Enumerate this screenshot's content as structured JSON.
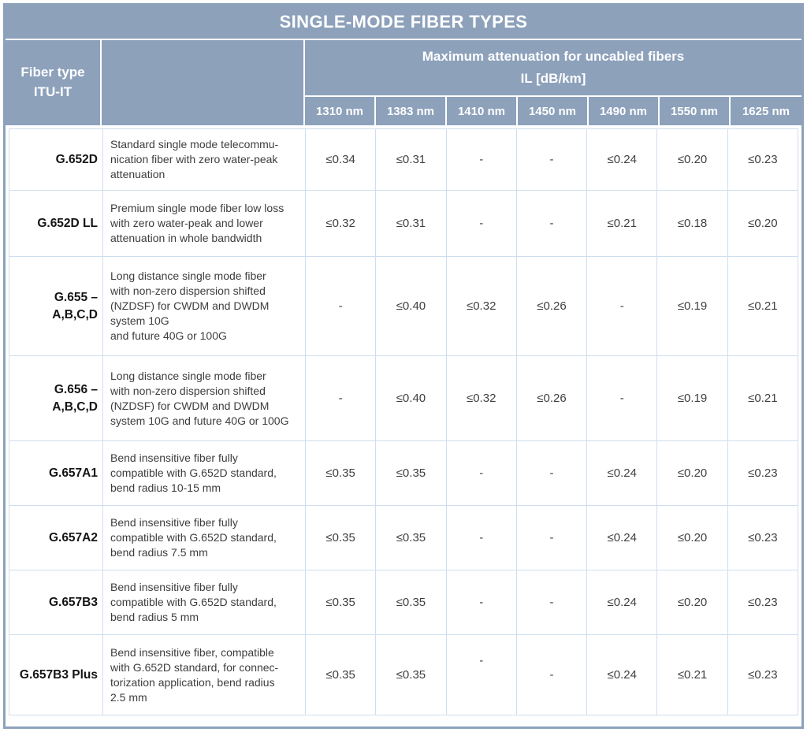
{
  "title": "SINGLE-MODE FIBER TYPES",
  "header": {
    "fiber_type_label": "Fiber type\nITU-IT",
    "attenuation_label": "Maximum attenuation for uncabled fibers\nIL [dB/km]",
    "wavelengths": [
      "1310 nm",
      "1383 nm",
      "1410 nm",
      "1450 nm",
      "1490 nm",
      "1550 nm",
      "1625 nm"
    ]
  },
  "rows": [
    {
      "type": "G.652D",
      "description": "Standard single mode telecommu-\nnication fiber with zero water-peak\nattenuation",
      "values": [
        "≤0.34",
        "≤0.31",
        "-",
        "-",
        "≤0.24",
        "≤0.20",
        "≤0.23"
      ]
    },
    {
      "type": "G.652D LL",
      "description": "Premium single mode fiber low loss\nwith zero water-peak and lower\nattenuation in whole bandwidth",
      "values": [
        "≤0.32",
        "≤0.31",
        "-",
        "-",
        "≤0.21",
        "≤0.18",
        "≤0.20"
      ]
    },
    {
      "type": "G.655 –\nA,B,C,D",
      "description": "Long distance single mode fiber\nwith non-zero dispersion shifted\n(NZDSF) for CWDM and DWDM\nsystem 10G\nand future 40G or 100G",
      "values": [
        "-",
        "≤0.40",
        "≤0.32",
        "≤0.26",
        "-",
        "≤0.19",
        "≤0.21"
      ]
    },
    {
      "type": "G.656 –\nA,B,C,D",
      "description": "Long distance single mode fiber\nwith non-zero dispersion shifted\n(NZDSF) for CWDM and DWDM\nsystem 10G and future 40G or 100G",
      "values": [
        "-",
        "≤0.40",
        "≤0.32",
        "≤0.26",
        "-",
        "≤0.19",
        "≤0.21"
      ]
    },
    {
      "type": "G.657A1",
      "description": "Bend insensitive fiber fully\ncompatible with G.652D standard,\nbend radius 10-15 mm",
      "values": [
        "≤0.35",
        "≤0.35",
        "-",
        "-",
        "≤0.24",
        "≤0.20",
        "≤0.23"
      ]
    },
    {
      "type": "G.657A2",
      "description": "Bend insensitive fiber fully\ncompatible with G.652D standard,\nbend radius 7.5 mm",
      "values": [
        "≤0.35",
        "≤0.35",
        "-",
        "-",
        "≤0.24",
        "≤0.20",
        "≤0.23"
      ]
    },
    {
      "type": "G.657B3",
      "description": "Bend insensitive fiber fully\ncompatible with G.652D standard,\nbend radius 5 mm",
      "values": [
        "≤0.35",
        "≤0.35",
        "-",
        "-",
        "≤0.24",
        "≤0.20",
        "≤0.23"
      ]
    },
    {
      "type": "G.657B3 Plus",
      "description": "Bend insensitive fiber, compatible\nwith G.652D standard, for connec-\ntorization application, bend radius\n2.5 mm",
      "values": [
        "≤0.35",
        "≤0.35",
        "-",
        "-",
        "≤0.24",
        "≤0.21",
        "≤0.23"
      ]
    }
  ],
  "colors": {
    "header_bg": "#8da1bb",
    "frame": "#8da1bb",
    "grid_line": "#cfdeee",
    "header_text": "#ffffff",
    "body_text": "#3d3d3d"
  },
  "layout_quirks": {
    "raised_dash_cell": {
      "row_index": 7,
      "value_index": 2
    }
  }
}
